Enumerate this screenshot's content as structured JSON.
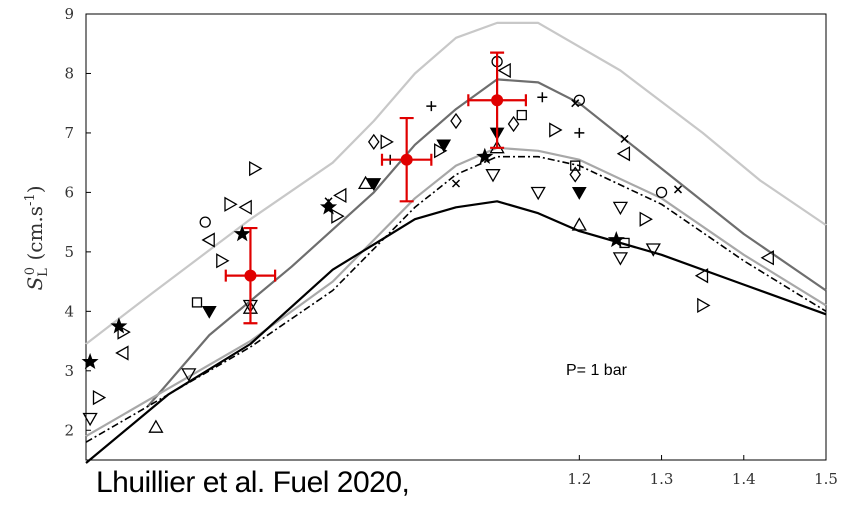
{
  "chart_data": {
    "type": "scatter",
    "title": "",
    "xlabel": "",
    "ylabel": "S_L^0 (cm.s^-1)",
    "ylabel_parts": {
      "symbol": "S",
      "sup": "0",
      "sub": "L",
      "unit_open": " (cm.s",
      "unit_sup": "-1",
      "unit_close": ")"
    },
    "xlim": [
      0.6,
      1.5
    ],
    "ylim": [
      1.5,
      9
    ],
    "x_ticks": [
      1.2,
      1.3,
      1.4,
      1.5
    ],
    "x_tick_labels": [
      "1.2",
      "1.3",
      "1.4",
      "1.5"
    ],
    "y_ticks": [
      2,
      3,
      4,
      5,
      6,
      7,
      8,
      9
    ],
    "y_tick_labels": [
      "2",
      "3",
      "4",
      "5",
      "6",
      "7",
      "8",
      "9"
    ],
    "annotation": "P= 1 bar",
    "colors": {
      "highlight": "#e00000",
      "curve_light": "#c8c8c8",
      "curve_mid": "#6e6e6e",
      "curve_lightmid": "#a8a8a8",
      "curve_dark": "#000000"
    },
    "curves": [
      {
        "style": "light-gray",
        "x": [
          0.6,
          0.68,
          0.8,
          0.9,
          0.95,
          1.0,
          1.05,
          1.1,
          1.15,
          1.25,
          1.35,
          1.42,
          1.5
        ],
        "y": [
          3.45,
          4.3,
          5.55,
          6.5,
          7.2,
          8.0,
          8.6,
          8.85,
          8.85,
          8.05,
          7.0,
          6.2,
          5.45
        ]
      },
      {
        "style": "dark-gray",
        "x": [
          0.675,
          0.75,
          0.85,
          0.95,
          1.0,
          1.05,
          1.1,
          1.15,
          1.2,
          1.3,
          1.4,
          1.5
        ],
        "y": [
          2.4,
          3.6,
          4.75,
          6.0,
          6.8,
          7.4,
          7.9,
          7.85,
          7.5,
          6.4,
          5.3,
          4.35
        ]
      },
      {
        "style": "mid-gray",
        "x": [
          0.6,
          0.7,
          0.8,
          0.9,
          0.95,
          1.0,
          1.05,
          1.1,
          1.15,
          1.2,
          1.3,
          1.4,
          1.5
        ],
        "y": [
          1.9,
          2.7,
          3.5,
          4.5,
          5.2,
          5.9,
          6.45,
          6.75,
          6.7,
          6.55,
          5.9,
          4.95,
          4.1
        ]
      },
      {
        "style": "dash-dot",
        "x": [
          0.6,
          0.7,
          0.8,
          0.9,
          0.95,
          1.0,
          1.05,
          1.1,
          1.15,
          1.2,
          1.3,
          1.4,
          1.5
        ],
        "y": [
          1.8,
          2.6,
          3.4,
          4.35,
          5.05,
          5.75,
          6.3,
          6.6,
          6.6,
          6.45,
          5.8,
          4.85,
          4.0
        ]
      },
      {
        "style": "black",
        "x": [
          0.6,
          0.7,
          0.8,
          0.9,
          1.0,
          1.05,
          1.1,
          1.15,
          1.2,
          1.3,
          1.4,
          1.5
        ],
        "y": [
          1.45,
          2.6,
          3.45,
          4.7,
          5.55,
          5.75,
          5.85,
          5.65,
          5.35,
          4.95,
          4.45,
          3.95
        ]
      }
    ],
    "highlight_points": [
      {
        "x": 0.8,
        "y": 4.6,
        "xerr": 0.03,
        "yerr": 0.8
      },
      {
        "x": 0.99,
        "y": 6.55,
        "xerr": 0.03,
        "yerr": 0.7
      },
      {
        "x": 1.1,
        "y": 7.55,
        "xerr": 0.035,
        "yerr": 0.8
      }
    ],
    "scatter_points": [
      {
        "m": "filled-star",
        "x": 0.605,
        "y": 3.15
      },
      {
        "m": "filled-star",
        "x": 0.64,
        "y": 3.75
      },
      {
        "m": "filled-star",
        "x": 0.79,
        "y": 5.3
      },
      {
        "m": "filled-star",
        "x": 0.895,
        "y": 5.75
      },
      {
        "m": "filled-star",
        "x": 1.085,
        "y": 6.6
      },
      {
        "m": "filled-star",
        "x": 1.245,
        "y": 5.2
      },
      {
        "m": "tri-down",
        "x": 0.605,
        "y": 2.2
      },
      {
        "m": "tri-down",
        "x": 0.725,
        "y": 2.95
      },
      {
        "m": "tri-down",
        "x": 0.8,
        "y": 4.1
      },
      {
        "m": "tri-down",
        "x": 1.095,
        "y": 6.3
      },
      {
        "m": "tri-down",
        "x": 1.15,
        "y": 6.0
      },
      {
        "m": "tri-down",
        "x": 1.25,
        "y": 4.9
      },
      {
        "m": "tri-down",
        "x": 1.29,
        "y": 5.05
      },
      {
        "m": "tri-down",
        "x": 1.25,
        "y": 5.75
      },
      {
        "m": "tri-up",
        "x": 0.685,
        "y": 2.05
      },
      {
        "m": "tri-up",
        "x": 0.8,
        "y": 4.05
      },
      {
        "m": "tri-up",
        "x": 0.94,
        "y": 6.15
      },
      {
        "m": "tri-up",
        "x": 1.1,
        "y": 6.75
      },
      {
        "m": "tri-up",
        "x": 1.2,
        "y": 5.45
      },
      {
        "m": "tri-right",
        "x": 0.615,
        "y": 2.55
      },
      {
        "m": "tri-right",
        "x": 0.645,
        "y": 3.65
      },
      {
        "m": "tri-right",
        "x": 0.765,
        "y": 4.85
      },
      {
        "m": "tri-right",
        "x": 0.775,
        "y": 5.8
      },
      {
        "m": "tri-right",
        "x": 0.805,
        "y": 6.4
      },
      {
        "m": "tri-right",
        "x": 0.905,
        "y": 5.6
      },
      {
        "m": "tri-right",
        "x": 0.965,
        "y": 6.85
      },
      {
        "m": "tri-right",
        "x": 1.03,
        "y": 6.7
      },
      {
        "m": "tri-right",
        "x": 1.17,
        "y": 7.05
      },
      {
        "m": "tri-right",
        "x": 1.28,
        "y": 5.55
      },
      {
        "m": "tri-right",
        "x": 1.35,
        "y": 4.1
      },
      {
        "m": "tri-left",
        "x": 0.645,
        "y": 3.3
      },
      {
        "m": "tri-left",
        "x": 0.75,
        "y": 5.2
      },
      {
        "m": "tri-left",
        "x": 0.795,
        "y": 5.75
      },
      {
        "m": "tri-left",
        "x": 0.91,
        "y": 5.95
      },
      {
        "m": "tri-left",
        "x": 1.11,
        "y": 8.05
      },
      {
        "m": "tri-left",
        "x": 1.255,
        "y": 6.65
      },
      {
        "m": "tri-left",
        "x": 1.43,
        "y": 4.9
      },
      {
        "m": "tri-left",
        "x": 1.35,
        "y": 4.6
      },
      {
        "m": "filled-tri-down",
        "x": 0.75,
        "y": 4.0
      },
      {
        "m": "filled-tri-down",
        "x": 0.95,
        "y": 6.15
      },
      {
        "m": "filled-tri-down",
        "x": 1.035,
        "y": 6.8
      },
      {
        "m": "filled-tri-down",
        "x": 1.1,
        "y": 7.0
      },
      {
        "m": "filled-tri-down",
        "x": 1.2,
        "y": 6.0
      },
      {
        "m": "circle",
        "x": 0.745,
        "y": 5.5
      },
      {
        "m": "circle",
        "x": 1.1,
        "y": 8.2
      },
      {
        "m": "circle",
        "x": 1.2,
        "y": 7.55
      },
      {
        "m": "circle",
        "x": 1.3,
        "y": 6.0
      },
      {
        "m": "square",
        "x": 0.735,
        "y": 4.15
      },
      {
        "m": "square",
        "x": 1.13,
        "y": 7.3
      },
      {
        "m": "square",
        "x": 1.195,
        "y": 6.45
      },
      {
        "m": "square",
        "x": 1.255,
        "y": 5.15
      },
      {
        "m": "diamond",
        "x": 0.95,
        "y": 6.85
      },
      {
        "m": "diamond",
        "x": 1.05,
        "y": 7.2
      },
      {
        "m": "diamond",
        "x": 1.12,
        "y": 7.15
      },
      {
        "m": "diamond",
        "x": 1.195,
        "y": 6.3
      },
      {
        "m": "plus",
        "x": 0.97,
        "y": 6.55
      },
      {
        "m": "plus",
        "x": 1.02,
        "y": 7.45
      },
      {
        "m": "plus",
        "x": 1.155,
        "y": 7.6
      },
      {
        "m": "plus",
        "x": 1.2,
        "y": 7.0
      },
      {
        "m": "cross",
        "x": 0.895,
        "y": 5.85
      },
      {
        "m": "cross",
        "x": 1.05,
        "y": 6.15
      },
      {
        "m": "cross",
        "x": 1.195,
        "y": 7.5
      },
      {
        "m": "cross",
        "x": 1.255,
        "y": 6.9
      },
      {
        "m": "cross",
        "x": 1.32,
        "y": 6.05
      }
    ]
  },
  "citation": "Lhuillier et al. Fuel 2020,"
}
